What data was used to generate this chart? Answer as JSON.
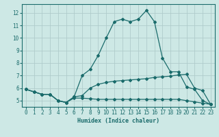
{
  "xlabel": "Humidex (Indice chaleur)",
  "ylabel": "",
  "background_color": "#cde8e5",
  "line_color": "#1a6b6b",
  "grid_color": "#b0cccb",
  "xlim": [
    -0.5,
    23.5
  ],
  "ylim": [
    4.5,
    12.7
  ],
  "xticks": [
    0,
    1,
    2,
    3,
    4,
    5,
    6,
    7,
    8,
    9,
    10,
    11,
    12,
    13,
    14,
    15,
    16,
    17,
    18,
    19,
    20,
    21,
    22,
    23
  ],
  "yticks": [
    5,
    6,
    7,
    8,
    9,
    10,
    11,
    12
  ],
  "line1_x": [
    0,
    1,
    2,
    3,
    4,
    5,
    6,
    7,
    8,
    9,
    10,
    11,
    12,
    13,
    14,
    15,
    16,
    17,
    18,
    19,
    20,
    21,
    22,
    23
  ],
  "line1_y": [
    5.9,
    5.7,
    5.5,
    5.5,
    5.0,
    4.85,
    5.2,
    5.2,
    5.15,
    5.1,
    5.1,
    5.1,
    5.1,
    5.1,
    5.1,
    5.1,
    5.1,
    5.1,
    5.1,
    5.1,
    5.0,
    4.9,
    4.8,
    4.7
  ],
  "line2_x": [
    0,
    1,
    2,
    3,
    4,
    5,
    6,
    7,
    8,
    9,
    10,
    11,
    12,
    13,
    14,
    15,
    16,
    17,
    18,
    19,
    20,
    21,
    22,
    23
  ],
  "line2_y": [
    5.9,
    5.7,
    5.5,
    5.5,
    5.0,
    4.85,
    5.3,
    5.4,
    6.0,
    6.3,
    6.45,
    6.55,
    6.6,
    6.65,
    6.7,
    6.75,
    6.85,
    6.9,
    6.95,
    7.05,
    7.1,
    6.0,
    5.8,
    4.7
  ],
  "line3_x": [
    0,
    1,
    2,
    3,
    4,
    5,
    6,
    7,
    8,
    9,
    10,
    11,
    12,
    13,
    14,
    15,
    16,
    17,
    18,
    19,
    20,
    21,
    22,
    23
  ],
  "line3_y": [
    5.9,
    5.7,
    5.5,
    5.5,
    5.0,
    4.85,
    5.3,
    7.0,
    7.5,
    8.6,
    10.0,
    11.3,
    11.5,
    11.3,
    11.5,
    12.2,
    11.3,
    8.4,
    7.3,
    7.3,
    6.1,
    5.9,
    5.0,
    4.7
  ],
  "tick_fontsize": 5.5,
  "xlabel_fontsize": 6.0
}
